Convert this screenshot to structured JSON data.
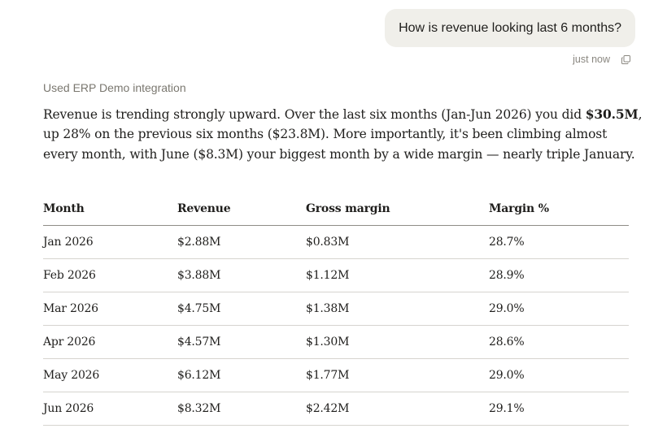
{
  "conversation": {
    "user_message": "How is revenue looking last 6 months?",
    "timestamp": "just now",
    "integration_note": "Used ERP Demo integration",
    "answer": {
      "part1": "Revenue is trending strongly upward. Over the last six months (Jan-Jun 2026) you did ",
      "bold": "$30.5M",
      "part2": ", up 28% on the previous six months ($23.8M). More importantly, it's been climbing almost every month, with June ($8.3M) your biggest month by a wide margin — nearly triple January."
    }
  },
  "table": {
    "headers": [
      "Month",
      "Revenue",
      "Gross margin",
      "Margin %"
    ],
    "rows": [
      [
        "Jan 2026",
        "$2.88M",
        "$0.83M",
        "28.7%"
      ],
      [
        "Feb 2026",
        "$3.88M",
        "$1.12M",
        "28.9%"
      ],
      [
        "Mar 2026",
        "$4.75M",
        "$1.38M",
        "29.0%"
      ],
      [
        "Apr 2026",
        "$4.57M",
        "$1.30M",
        "28.6%"
      ],
      [
        "May 2026",
        "$6.12M",
        "$1.77M",
        "29.0%"
      ],
      [
        "Jun 2026",
        "$8.32M",
        "$2.42M",
        "29.1%"
      ]
    ]
  },
  "icons": {
    "copy": "copy-icon"
  },
  "colors": {
    "bubble_bg": "#f0efea",
    "text": "#1f1e1c",
    "muted": "#8a8780"
  }
}
